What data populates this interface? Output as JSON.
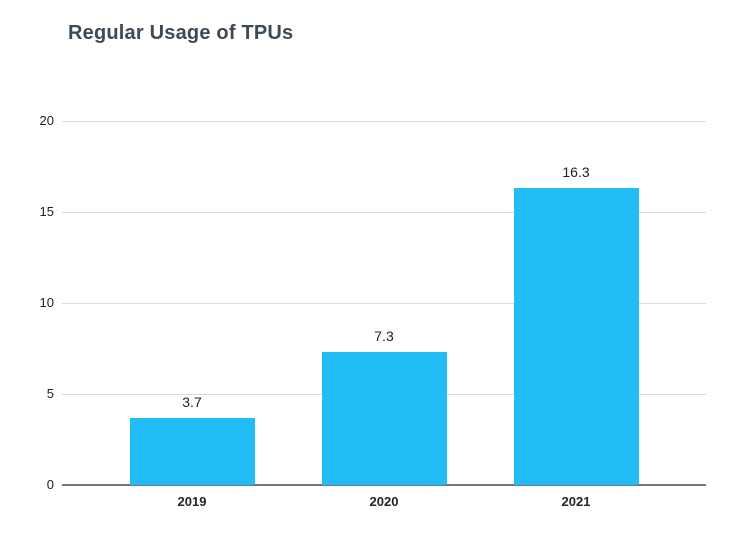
{
  "chart_data": {
    "type": "bar",
    "title": "Regular Usage of TPUs",
    "categories": [
      "2019",
      "2020",
      "2021"
    ],
    "values": [
      3.7,
      7.3,
      16.3
    ],
    "value_labels": [
      "3.7",
      "7.3",
      "16.3"
    ],
    "xlabel": "",
    "ylabel": "",
    "ylim": [
      0,
      20
    ],
    "yticks": [
      0,
      5,
      10,
      15,
      20
    ],
    "grid": "horizontal",
    "legend": "none",
    "colors": {
      "bar": "#22bdf7",
      "title": "#3e4a54",
      "gridline": "#dadada",
      "axis_line": "#757575",
      "tick_label": "#212121",
      "value_label": "#212121",
      "category_label": "#252525",
      "background": "#ffffff"
    }
  }
}
